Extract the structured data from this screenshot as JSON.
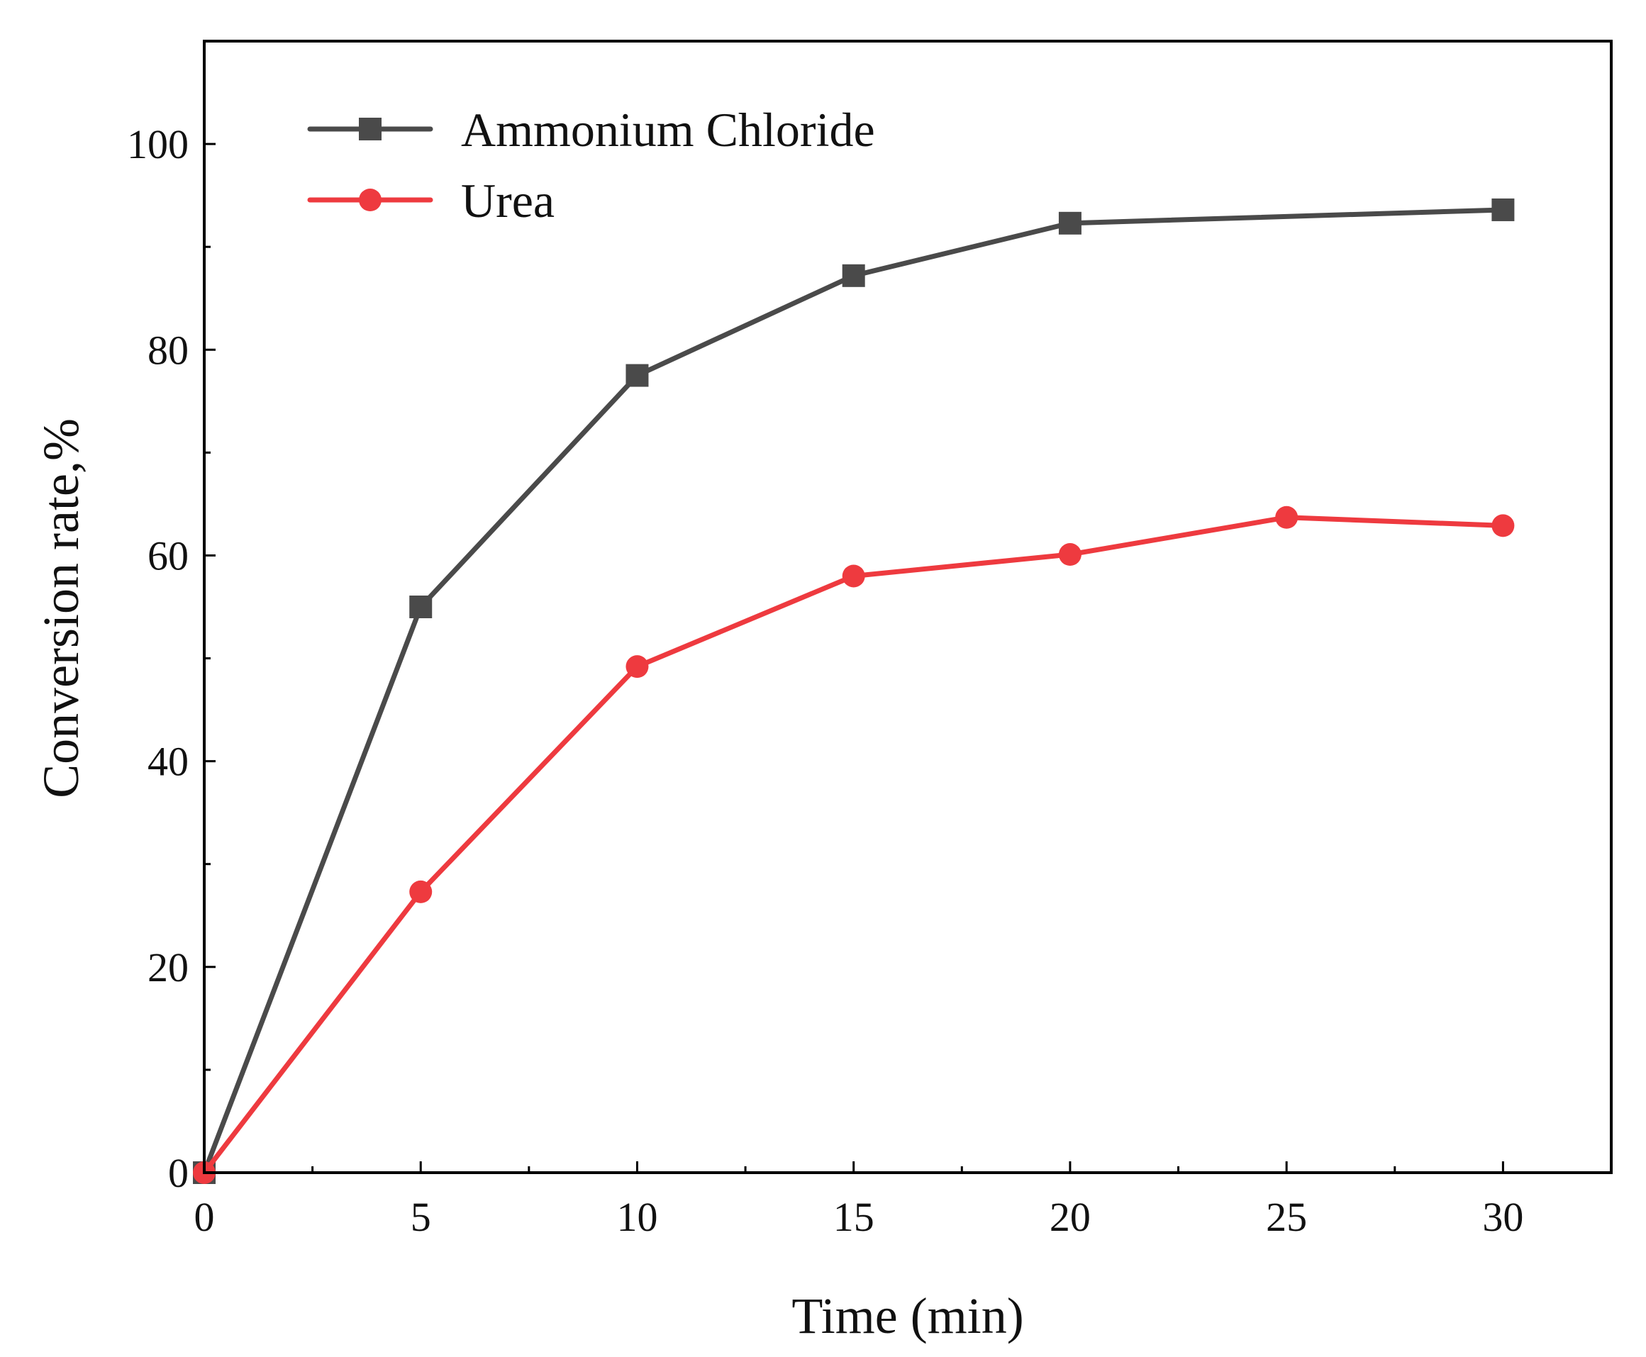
{
  "chart_data": {
    "type": "line",
    "title": "",
    "xlabel": "Time (min)",
    "ylabel": "Conversion rate,%",
    "xlim": [
      0,
      32.5
    ],
    "ylim": [
      0,
      110
    ],
    "xticks": [
      0,
      5,
      10,
      15,
      20,
      25,
      30
    ],
    "xticks_minor": [
      2.5,
      7.5,
      12.5,
      17.5,
      22.5,
      27.5
    ],
    "yticks": [
      0,
      20,
      40,
      60,
      80,
      100
    ],
    "yticks_minor": [
      10,
      30,
      50,
      70,
      90
    ],
    "grid": false,
    "legend_position": "top-left",
    "series": [
      {
        "name": "Ammonium Chloride",
        "color": "#4a4a4a",
        "marker": "square",
        "x": [
          0,
          5,
          10,
          15,
          20,
          30
        ],
        "y": [
          0,
          55,
          77.5,
          87.2,
          92.3,
          93.6
        ]
      },
      {
        "name": "Urea",
        "color": "#ee3a3f",
        "marker": "circle",
        "x": [
          0,
          5,
          10,
          15,
          20,
          25,
          30
        ],
        "y": [
          0,
          27.3,
          49.2,
          58,
          60.1,
          63.7,
          62.9
        ]
      }
    ]
  }
}
